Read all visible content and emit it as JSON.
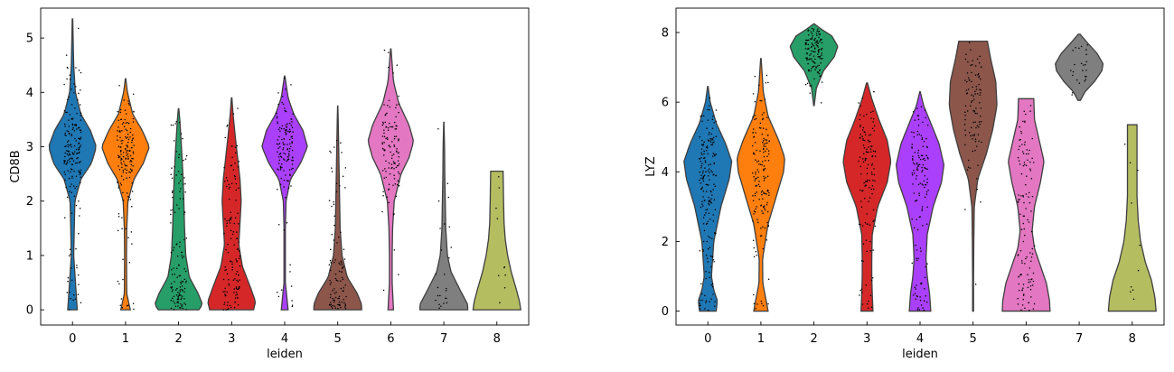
{
  "chart_data": [
    {
      "type": "violin",
      "xlabel": "leiden",
      "ylabel": "CD8B",
      "ylim": [
        -0.28,
        5.55
      ],
      "yticks": [
        0,
        1,
        2,
        3,
        4,
        5
      ],
      "categories": [
        "0",
        "1",
        "2",
        "3",
        "4",
        "5",
        "6",
        "7",
        "8"
      ],
      "colors": [
        "#1f77b4",
        "#ff7f0e",
        "#279e68",
        "#d62728",
        "#aa40fc",
        "#8c564b",
        "#e377c2",
        "#7f7f7f",
        "#b5bd61"
      ],
      "violins": [
        {
          "category": "0",
          "min": 0,
          "max": 5.35,
          "max_half_width": 0.45,
          "points": 190,
          "profile": [
            [
              0,
              0.2
            ],
            [
              1,
              0.05
            ],
            [
              2,
              0.1
            ],
            [
              2.4,
              0.35
            ],
            [
              2.7,
              0.8
            ],
            [
              3,
              1.0
            ],
            [
              3.3,
              0.75
            ],
            [
              3.6,
              0.35
            ],
            [
              4,
              0.12
            ],
            [
              4.5,
              0.05
            ],
            [
              5.35,
              0.01
            ]
          ]
        },
        {
          "category": "1",
          "min": 0,
          "max": 4.25,
          "max_half_width": 0.45,
          "points": 160,
          "profile": [
            [
              0,
              0.2
            ],
            [
              0.3,
              0.05
            ],
            [
              1,
              0.04
            ],
            [
              1.5,
              0.05
            ],
            [
              2,
              0.1
            ],
            [
              2.4,
              0.35
            ],
            [
              2.7,
              0.75
            ],
            [
              3,
              1.0
            ],
            [
              3.3,
              0.7
            ],
            [
              3.6,
              0.3
            ],
            [
              4,
              0.08
            ],
            [
              4.25,
              0.01
            ]
          ]
        },
        {
          "category": "2",
          "min": 0,
          "max": 3.7,
          "max_half_width": 0.45,
          "points": 130,
          "profile": [
            [
              0,
              0.85
            ],
            [
              0.1,
              1.0
            ],
            [
              0.3,
              0.82
            ],
            [
              0.6,
              0.45
            ],
            [
              1,
              0.3
            ],
            [
              1.5,
              0.25
            ],
            [
              2,
              0.22
            ],
            [
              2.5,
              0.18
            ],
            [
              3,
              0.12
            ],
            [
              3.5,
              0.05
            ],
            [
              3.7,
              0.01
            ]
          ]
        },
        {
          "category": "3",
          "min": 0,
          "max": 3.9,
          "max_half_width": 0.45,
          "points": 130,
          "profile": [
            [
              0,
              0.92
            ],
            [
              0.15,
              1.0
            ],
            [
              0.4,
              0.8
            ],
            [
              0.8,
              0.45
            ],
            [
              1.2,
              0.3
            ],
            [
              1.6,
              0.35
            ],
            [
              2,
              0.4
            ],
            [
              2.4,
              0.35
            ],
            [
              2.8,
              0.25
            ],
            [
              3.2,
              0.15
            ],
            [
              3.6,
              0.06
            ],
            [
              3.9,
              0.01
            ]
          ]
        },
        {
          "category": "4",
          "min": 0,
          "max": 4.3,
          "max_half_width": 0.43,
          "points": 140,
          "profile": [
            [
              0,
              0.15
            ],
            [
              0.5,
              0.03
            ],
            [
              1.5,
              0.03
            ],
            [
              2,
              0.06
            ],
            [
              2.4,
              0.25
            ],
            [
              2.7,
              0.7
            ],
            [
              3,
              1.0
            ],
            [
              3.3,
              0.8
            ],
            [
              3.6,
              0.4
            ],
            [
              3.9,
              0.15
            ],
            [
              4.3,
              0.01
            ]
          ]
        },
        {
          "category": "5",
          "min": 0,
          "max": 3.75,
          "max_half_width": 0.45,
          "points": 100,
          "profile": [
            [
              0,
              1.0
            ],
            [
              0.1,
              1.0
            ],
            [
              0.3,
              0.82
            ],
            [
              0.6,
              0.4
            ],
            [
              1,
              0.18
            ],
            [
              1.5,
              0.1
            ],
            [
              2,
              0.08
            ],
            [
              2.5,
              0.06
            ],
            [
              3,
              0.04
            ],
            [
              3.5,
              0.02
            ],
            [
              3.75,
              0.005
            ]
          ]
        },
        {
          "category": "6",
          "min": 0,
          "max": 4.8,
          "max_half_width": 0.43,
          "points": 120,
          "profile": [
            [
              0,
              0.12
            ],
            [
              0.5,
              0.06
            ],
            [
              1,
              0.06
            ],
            [
              1.5,
              0.08
            ],
            [
              2,
              0.15
            ],
            [
              2.5,
              0.45
            ],
            [
              2.8,
              0.8
            ],
            [
              3.1,
              1.0
            ],
            [
              3.4,
              0.8
            ],
            [
              3.8,
              0.35
            ],
            [
              4.2,
              0.12
            ],
            [
              4.8,
              0.01
            ]
          ]
        },
        {
          "category": "7",
          "min": 0,
          "max": 3.45,
          "max_half_width": 0.45,
          "points": 25,
          "profile": [
            [
              0,
              1.0
            ],
            [
              0.1,
              1.0
            ],
            [
              0.35,
              0.7
            ],
            [
              0.7,
              0.3
            ],
            [
              1,
              0.15
            ],
            [
              1.5,
              0.08
            ],
            [
              2,
              0.06
            ],
            [
              2.5,
              0.04
            ],
            [
              3,
              0.03
            ],
            [
              3.45,
              0.005
            ]
          ]
        },
        {
          "category": "8",
          "min": 0,
          "max": 2.55,
          "max_half_width": 0.45,
          "points": 10,
          "profile": [
            [
              0,
              1.0
            ],
            [
              0.15,
              0.95
            ],
            [
              0.4,
              0.8
            ],
            [
              0.7,
              0.6
            ],
            [
              1,
              0.45
            ],
            [
              1.3,
              0.35
            ],
            [
              1.6,
              0.3
            ],
            [
              2,
              0.28
            ],
            [
              2.3,
              0.27
            ],
            [
              2.55,
              0.26
            ]
          ]
        }
      ]
    },
    {
      "type": "violin",
      "xlabel": "leiden",
      "ylabel": "LYZ",
      "ylim": [
        -0.4,
        8.7
      ],
      "yticks": [
        0,
        2,
        4,
        6,
        8
      ],
      "categories": [
        "0",
        "1",
        "2",
        "3",
        "4",
        "5",
        "6",
        "7",
        "8"
      ],
      "colors": [
        "#1f77b4",
        "#ff7f0e",
        "#279e68",
        "#d62728",
        "#aa40fc",
        "#8c564b",
        "#e377c2",
        "#7f7f7f",
        "#b5bd61"
      ],
      "violins": [
        {
          "category": "0",
          "min": 0,
          "max": 6.45,
          "max_half_width": 0.45,
          "points": 190,
          "profile": [
            [
              0,
              0.35
            ],
            [
              0.3,
              0.4
            ],
            [
              0.6,
              0.25
            ],
            [
              1,
              0.15
            ],
            [
              2,
              0.25
            ],
            [
              3,
              0.55
            ],
            [
              3.8,
              0.9
            ],
            [
              4.3,
              1.0
            ],
            [
              4.8,
              0.75
            ],
            [
              5.4,
              0.35
            ],
            [
              6,
              0.1
            ],
            [
              6.45,
              0.01
            ]
          ]
        },
        {
          "category": "1",
          "min": 0,
          "max": 7.25,
          "max_half_width": 0.45,
          "points": 160,
          "profile": [
            [
              0,
              0.3
            ],
            [
              0.2,
              0.25
            ],
            [
              0.8,
              0.08
            ],
            [
              1.5,
              0.07
            ],
            [
              2.5,
              0.3
            ],
            [
              3.3,
              0.65
            ],
            [
              4,
              0.95
            ],
            [
              4.4,
              1.0
            ],
            [
              4.9,
              0.75
            ],
            [
              5.6,
              0.3
            ],
            [
              6.3,
              0.1
            ],
            [
              7.25,
              0.01
            ]
          ]
        },
        {
          "category": "2",
          "min": 5.9,
          "max": 8.25,
          "max_half_width": 0.45,
          "points": 130,
          "profile": [
            [
              5.9,
              0.01
            ],
            [
              6.4,
              0.1
            ],
            [
              6.9,
              0.4
            ],
            [
              7.3,
              0.85
            ],
            [
              7.6,
              1.0
            ],
            [
              7.9,
              0.75
            ],
            [
              8.1,
              0.3
            ],
            [
              8.25,
              0.01
            ]
          ]
        },
        {
          "category": "3",
          "min": 0,
          "max": 6.55,
          "max_half_width": 0.45,
          "points": 130,
          "profile": [
            [
              0,
              0.25
            ],
            [
              0.5,
              0.22
            ],
            [
              1,
              0.2
            ],
            [
              1.5,
              0.2
            ],
            [
              2.2,
              0.22
            ],
            [
              3,
              0.45
            ],
            [
              3.7,
              0.85
            ],
            [
              4.3,
              1.0
            ],
            [
              4.9,
              0.85
            ],
            [
              5.5,
              0.5
            ],
            [
              6.1,
              0.2
            ],
            [
              6.55,
              0.02
            ]
          ]
        },
        {
          "category": "4",
          "min": 0,
          "max": 6.3,
          "max_half_width": 0.45,
          "points": 140,
          "profile": [
            [
              0,
              0.45
            ],
            [
              0.5,
              0.4
            ],
            [
              1,
              0.3
            ],
            [
              1.5,
              0.25
            ],
            [
              2.2,
              0.3
            ],
            [
              3,
              0.55
            ],
            [
              3.7,
              0.9
            ],
            [
              4.2,
              1.0
            ],
            [
              4.8,
              0.8
            ],
            [
              5.4,
              0.45
            ],
            [
              5.9,
              0.15
            ],
            [
              6.3,
              0.01
            ]
          ]
        },
        {
          "category": "5",
          "min": 0,
          "max": 7.75,
          "max_half_width": 0.45,
          "points": 100,
          "profile": [
            [
              0,
              0.02
            ],
            [
              1,
              0.02
            ],
            [
              2,
              0.03
            ],
            [
              3,
              0.05
            ],
            [
              3.8,
              0.2
            ],
            [
              4.5,
              0.55
            ],
            [
              5.2,
              0.82
            ],
            [
              5.9,
              1.0
            ],
            [
              6.6,
              0.95
            ],
            [
              7.2,
              0.75
            ],
            [
              7.75,
              0.6
            ]
          ]
        },
        {
          "category": "6",
          "min": 0,
          "max": 6.1,
          "max_half_width": 0.45,
          "points": 120,
          "profile": [
            [
              0,
              1.0
            ],
            [
              0.3,
              0.98
            ],
            [
              0.8,
              0.85
            ],
            [
              1.3,
              0.6
            ],
            [
              1.8,
              0.35
            ],
            [
              2.3,
              0.25
            ],
            [
              3,
              0.35
            ],
            [
              3.7,
              0.6
            ],
            [
              4.3,
              0.75
            ],
            [
              4.9,
              0.55
            ],
            [
              5.5,
              0.35
            ],
            [
              6.1,
              0.32
            ]
          ]
        },
        {
          "category": "7",
          "min": 6.05,
          "max": 7.95,
          "max_half_width": 0.45,
          "points": 25,
          "profile": [
            [
              6.05,
              0.05
            ],
            [
              6.3,
              0.25
            ],
            [
              6.6,
              0.65
            ],
            [
              6.9,
              0.95
            ],
            [
              7.1,
              1.0
            ],
            [
              7.4,
              0.75
            ],
            [
              7.7,
              0.35
            ],
            [
              7.95,
              0.04
            ]
          ]
        },
        {
          "category": "8",
          "min": 0,
          "max": 5.35,
          "max_half_width": 0.45,
          "points": 10,
          "profile": [
            [
              0,
              1.0
            ],
            [
              0.4,
              0.95
            ],
            [
              0.9,
              0.8
            ],
            [
              1.4,
              0.55
            ],
            [
              2,
              0.35
            ],
            [
              2.6,
              0.25
            ],
            [
              3.3,
              0.2
            ],
            [
              4,
              0.2
            ],
            [
              4.7,
              0.2
            ],
            [
              5.35,
              0.2
            ]
          ]
        }
      ]
    }
  ]
}
